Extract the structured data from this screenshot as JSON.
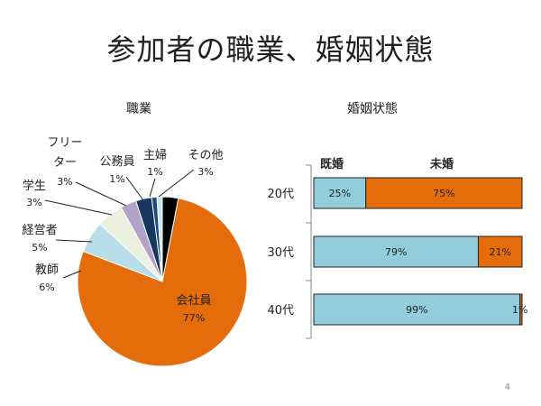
{
  "slide": {
    "title": "参加者の職業、婚姻状態",
    "page_number": "4"
  },
  "chart_data": [
    {
      "type": "pie",
      "title": "職業",
      "categories": [
        "会社員",
        "教師",
        "経営者",
        "学生",
        "フリーター",
        "公務員",
        "主婦",
        "その他"
      ],
      "values": [
        77,
        6,
        5,
        3,
        3,
        1,
        1,
        3
      ],
      "labels": [
        "77%",
        "6%",
        "5%",
        "3%",
        "3%",
        "1%",
        "1%",
        "3%"
      ],
      "colors": [
        "#E46C0A",
        "#B7DEE8",
        "#EBF1DE",
        "#B3A2C7",
        "#17375E",
        "#1F497D",
        "#C6E7F2",
        "#000000"
      ]
    },
    {
      "type": "bar",
      "orientation": "horizontal",
      "stacked": true,
      "title": "婚姻状態",
      "categories": [
        "20代",
        "30代",
        "40代"
      ],
      "series": [
        {
          "name": "既婚",
          "values": [
            25,
            79,
            99
          ],
          "labels": [
            "25%",
            "79%",
            "99%"
          ],
          "color": "#92CDDC"
        },
        {
          "name": "未婚",
          "values": [
            75,
            21,
            1
          ],
          "labels": [
            "75%",
            "21%",
            "1%"
          ],
          "color": "#E46C0A"
        }
      ],
      "xlim": [
        0,
        100
      ]
    }
  ]
}
